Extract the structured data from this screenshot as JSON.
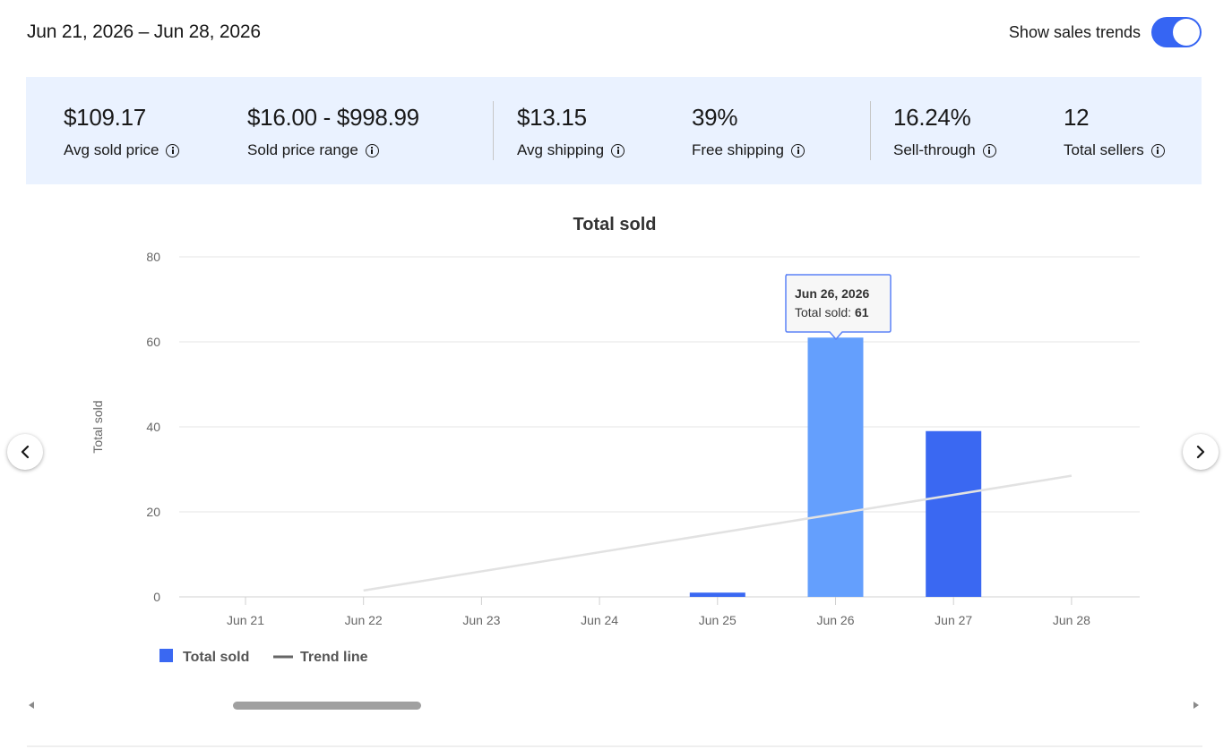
{
  "header": {
    "date_range": "Jun 21, 2026 – Jun 28, 2026",
    "toggle_label": "Show sales trends",
    "toggle_on": true
  },
  "stats": [
    {
      "value": "$109.17",
      "label": "Avg sold price"
    },
    {
      "value": "$16.00 - $998.99",
      "label": "Sold price range"
    },
    {
      "value": "$13.15",
      "label": "Avg shipping"
    },
    {
      "value": "39%",
      "label": "Free shipping"
    },
    {
      "value": "16.24%",
      "label": "Sell-through"
    },
    {
      "value": "12",
      "label": "Total sellers"
    }
  ],
  "icons": {
    "info": "info-icon",
    "prev": "chevron-left-icon",
    "next": "chevron-right-icon"
  },
  "colors": {
    "accent": "#3665f3",
    "bar": "#3a68f2",
    "bar_highlight": "#649ffd",
    "stats_bg": "#eaf2ff",
    "trend": "#e2e2e2"
  },
  "tooltip": {
    "date": "Jun 26, 2026",
    "label": "Total sold: ",
    "value": "61"
  },
  "chart_data": {
    "type": "bar",
    "title": "Total sold",
    "ylabel": "Total sold",
    "xlabel": "",
    "categories": [
      "Jun 21",
      "Jun 22",
      "Jun 23",
      "Jun 24",
      "Jun 25",
      "Jun 26",
      "Jun 27",
      "Jun 28"
    ],
    "series": [
      {
        "name": "Total sold",
        "values": [
          0,
          0,
          0,
          0,
          1,
          61,
          39,
          0
        ]
      }
    ],
    "trend_line": {
      "name": "Trend line",
      "start": {
        "x": "Jun 22",
        "y": 1.5
      },
      "end": {
        "x": "Jun 28",
        "y": 28.5
      }
    },
    "ylim": [
      0,
      80
    ],
    "yticks": [
      0,
      20,
      40,
      60,
      80
    ],
    "grid": true,
    "legend": "bottom-left",
    "highlighted_category": "Jun 26"
  }
}
